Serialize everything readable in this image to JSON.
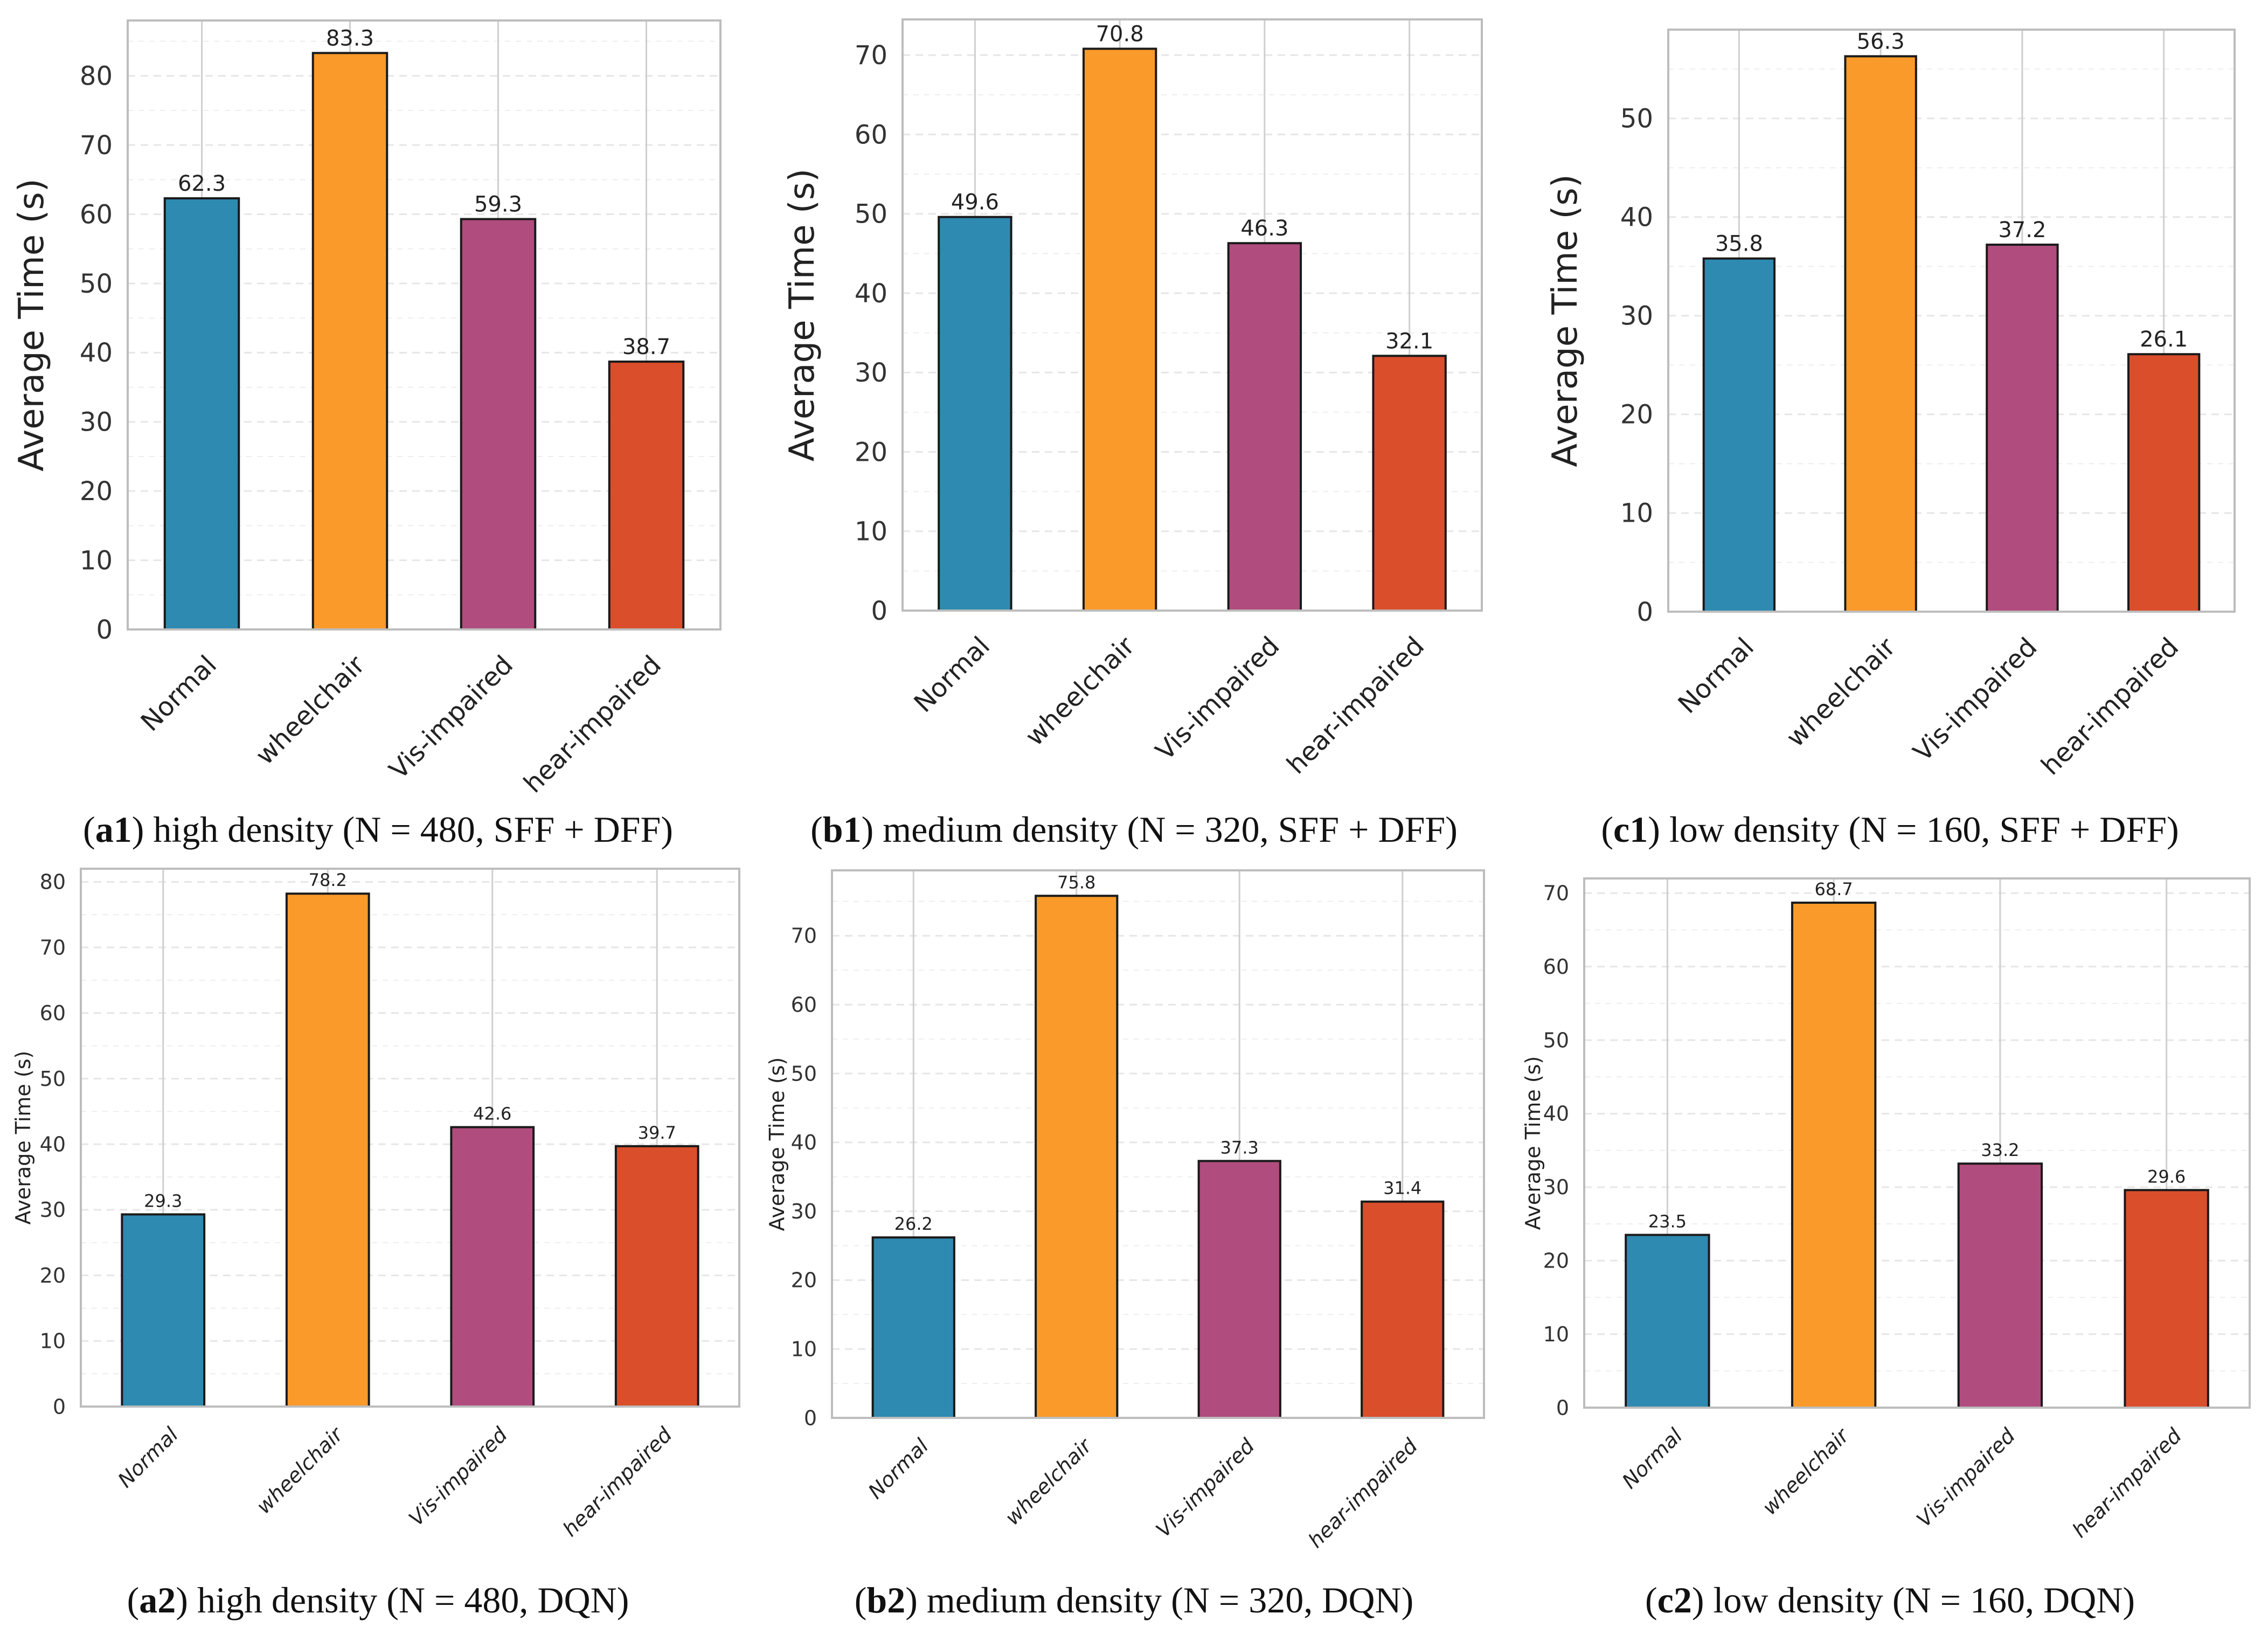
{
  "colors": {
    "bars": [
      "#2E8AB0",
      "#F99A2A",
      "#B04D7E",
      "#DA4E2C"
    ],
    "bar_stroke": "#1a1a1a",
    "grid": "#cfcfcf",
    "frame": "#bdbdbd",
    "text": "#333333"
  },
  "chart_data": [
    {
      "id": "a1",
      "type": "bar",
      "ylabel": "Average Time (s)",
      "categories": [
        "Normal",
        "wheelchair",
        "Vis-impaired",
        "hear-impaired"
      ],
      "values": [
        62.3,
        83.3,
        59.3,
        38.7
      ],
      "value_labels": [
        "62.3",
        "83.3",
        "59.3",
        "38.7"
      ],
      "ylim": [
        0,
        88
      ],
      "yticks": [
        0,
        10,
        20,
        30,
        40,
        50,
        60,
        70,
        80
      ],
      "caption_tag": "a1",
      "caption_text": "high density (N = 480, SFF + DFF)"
    },
    {
      "id": "b1",
      "type": "bar",
      "ylabel": "Average Time (s)",
      "categories": [
        "Normal",
        "wheelchair",
        "Vis-impaired",
        "hear-impaired"
      ],
      "values": [
        49.6,
        70.8,
        46.3,
        32.1
      ],
      "value_labels": [
        "49.6",
        "70.8",
        "46.3",
        "32.1"
      ],
      "ylim": [
        0,
        74.5
      ],
      "yticks": [
        0,
        10,
        20,
        30,
        40,
        50,
        60,
        70
      ],
      "caption_tag": "b1",
      "caption_text": "medium density (N = 320, SFF + DFF)"
    },
    {
      "id": "c1",
      "type": "bar",
      "ylabel": "Average Time (s)",
      "categories": [
        "Normal",
        "wheelchair",
        "Vis-impaired",
        "hear-impaired"
      ],
      "values": [
        35.8,
        56.3,
        37.2,
        26.1
      ],
      "value_labels": [
        "35.8",
        "56.3",
        "37.2",
        "26.1"
      ],
      "ylim": [
        0,
        59
      ],
      "yticks": [
        0,
        10,
        20,
        30,
        40,
        50
      ],
      "caption_tag": "c1",
      "caption_text": "low density (N = 160, SFF + DFF)"
    },
    {
      "id": "a2",
      "type": "bar",
      "ylabel": "Average Time (s)",
      "categories": [
        "Normal",
        "wheelchair",
        "Vis-impaired",
        "hear-impaired"
      ],
      "values": [
        29.3,
        78.2,
        42.6,
        39.7
      ],
      "value_labels": [
        "29.3",
        "78.2",
        "42.6",
        "39.7"
      ],
      "ylim": [
        0,
        82
      ],
      "yticks": [
        0,
        10,
        20,
        30,
        40,
        50,
        60,
        70,
        80
      ],
      "caption_tag": "a2",
      "caption_text": "high density (N = 480, DQN)"
    },
    {
      "id": "b2",
      "type": "bar",
      "ylabel": "Average Time (s)",
      "categories": [
        "Normal",
        "wheelchair",
        "Vis-impaired",
        "hear-impaired"
      ],
      "values": [
        26.2,
        75.8,
        37.3,
        31.4
      ],
      "value_labels": [
        "26.2",
        "75.8",
        "37.3",
        "31.4"
      ],
      "ylim": [
        0,
        79.5
      ],
      "yticks": [
        0,
        10,
        20,
        30,
        40,
        50,
        60,
        70
      ],
      "caption_tag": "b2",
      "caption_text": "medium density (N = 320, DQN)"
    },
    {
      "id": "c2",
      "type": "bar",
      "ylabel": "Average Time (s)",
      "categories": [
        "Normal",
        "wheelchair",
        "Vis-impaired",
        "hear-impaired"
      ],
      "values": [
        23.5,
        68.7,
        33.2,
        29.6
      ],
      "value_labels": [
        "23.5",
        "68.7",
        "33.2",
        "29.6"
      ],
      "ylim": [
        0,
        72
      ],
      "yticks": [
        0,
        10,
        20,
        30,
        40,
        50,
        60,
        70
      ],
      "caption_tag": "c2",
      "caption_text": "low density (N = 160, DQN)"
    }
  ]
}
